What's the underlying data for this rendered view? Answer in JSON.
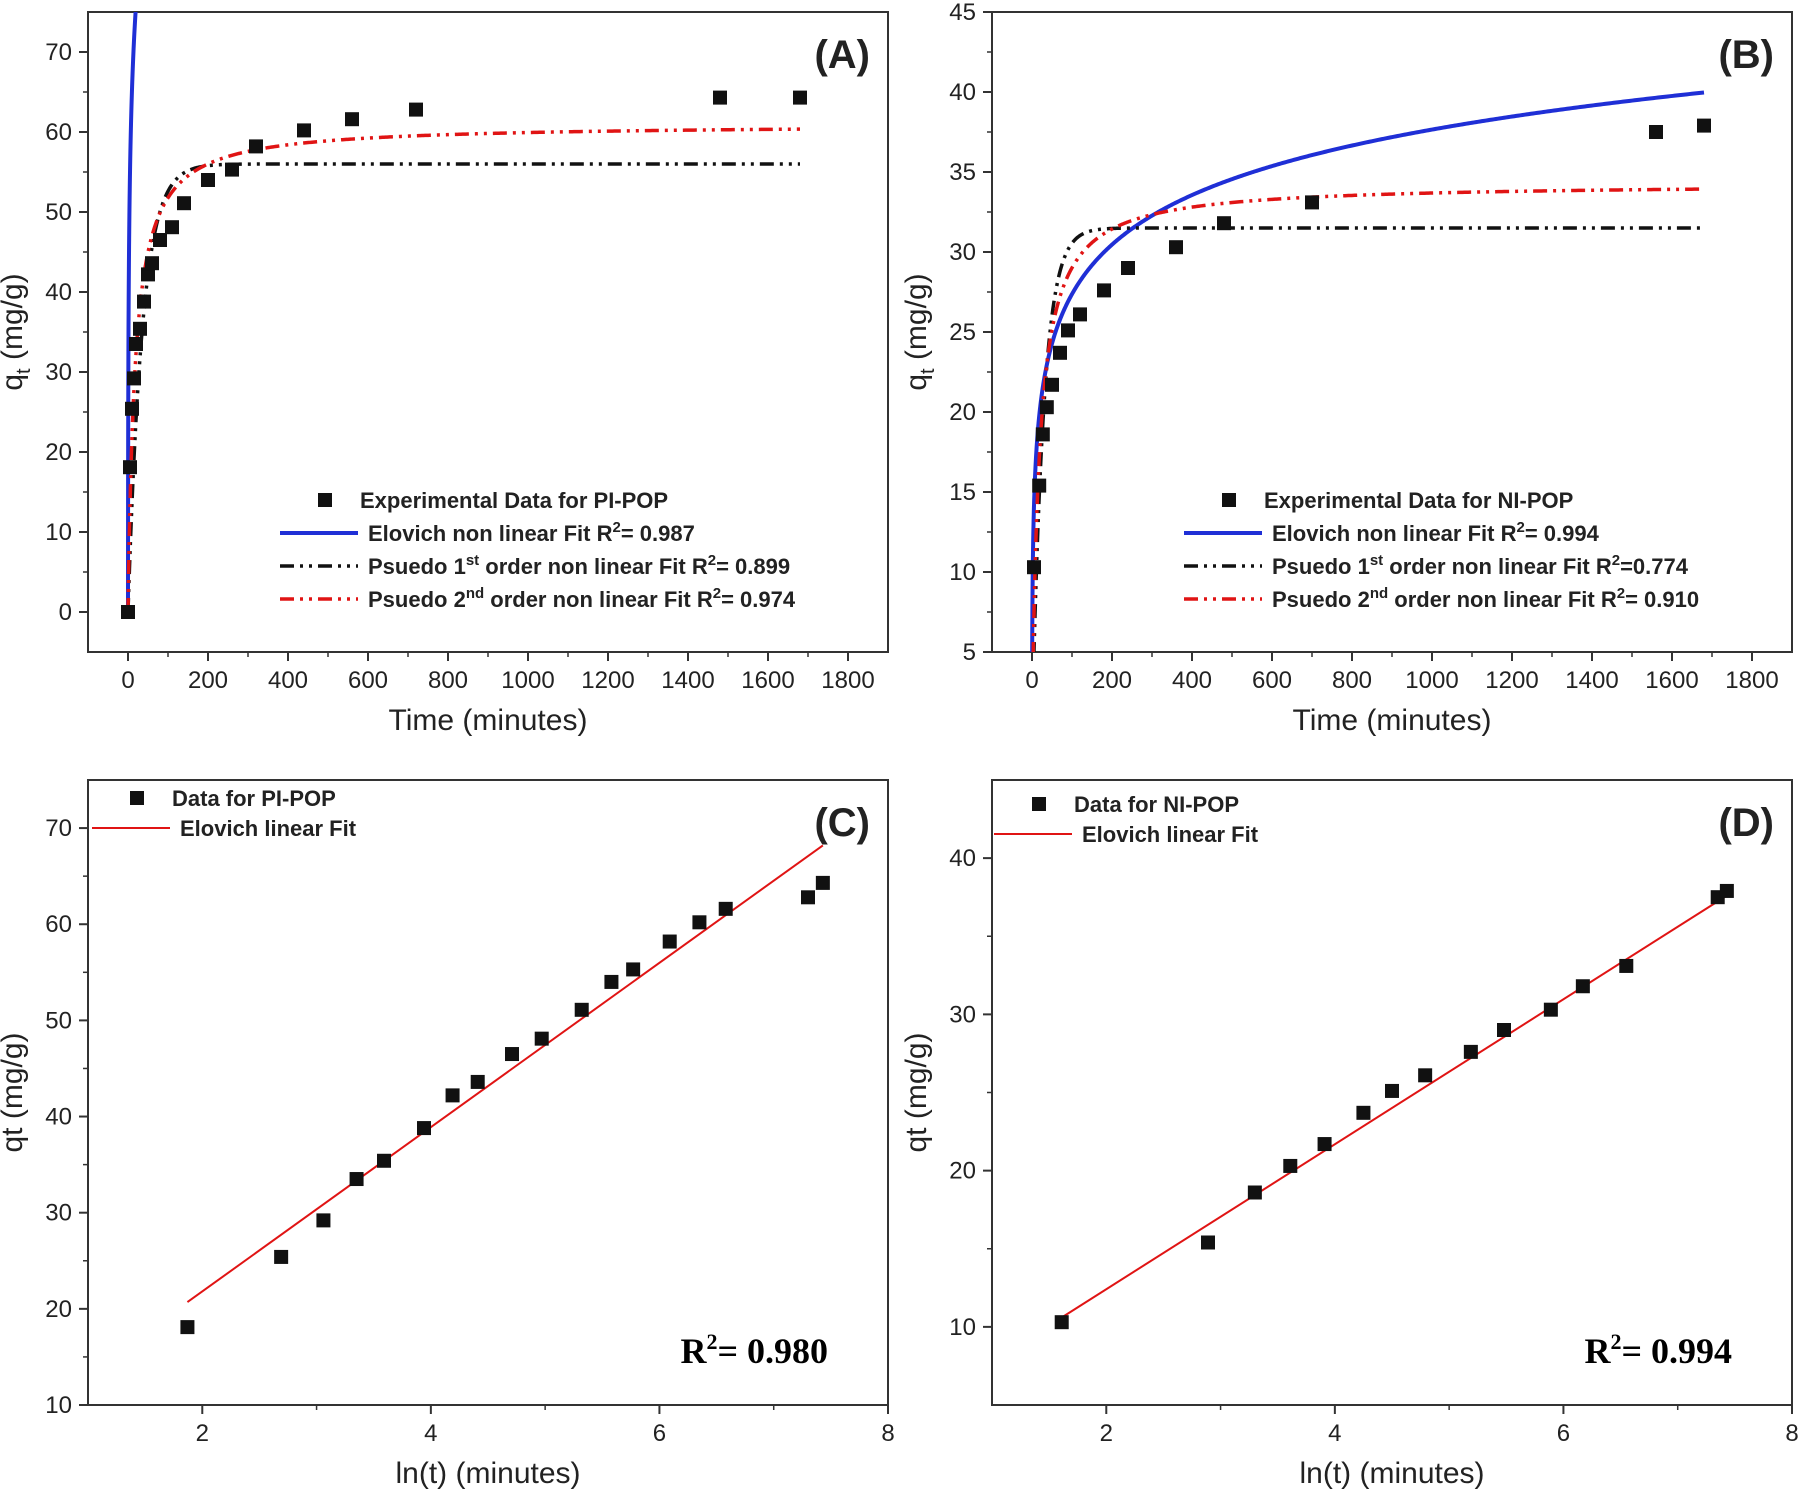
{
  "figure": {
    "colors": {
      "experimental": "#111111",
      "elovich": "#1f2fd6",
      "pfo": "#111111",
      "pso": "#e01414",
      "linear_fit": "#e01414"
    }
  },
  "chart_data": [
    {
      "id": "A",
      "type": "scatter",
      "panel_label": "(A)",
      "xlabel": "Time (minutes)",
      "ylabel_main": "q",
      "ylabel_sub": "t",
      "ylabel_unit": " (mg/g)",
      "xlim": [
        -100,
        1900
      ],
      "ylim": [
        -5,
        75
      ],
      "xticks": [
        0,
        200,
        400,
        600,
        800,
        1000,
        1200,
        1400,
        1600,
        1800
      ],
      "yticks": [
        0,
        10,
        20,
        30,
        40,
        50,
        60,
        70
      ],
      "legend_position": "bottom-right",
      "points": {
        "x": [
          0,
          5,
          10,
          15,
          20,
          30,
          40,
          50,
          60,
          80,
          110,
          140,
          200,
          260,
          320,
          440,
          560,
          720,
          1480,
          1680
        ],
        "y": [
          0,
          18.1,
          25.4,
          29.2,
          33.5,
          35.4,
          38.8,
          42.2,
          43.6,
          46.5,
          48.1,
          51.1,
          54.0,
          55.3,
          58.2,
          60.2,
          61.6,
          62.8,
          64.3,
          64.3
        ]
      },
      "series": [
        {
          "name_parts": [
            "Experimental Data for PI-POP"
          ],
          "kind": "scatter"
        },
        {
          "name_parts": [
            "Elovich non linear Fit R",
            "2",
            "= 0.987"
          ],
          "kind": "elovich",
          "params": {
            "a": 15.3,
            "b": 7.05,
            "c": 1.0
          }
        },
        {
          "name_parts": [
            "Psuedo 1",
            "st",
            " order non linear Fit R",
            "2",
            "= 0.899"
          ],
          "kind": "pfo",
          "params": {
            "qe": 56.0,
            "k1": 0.028
          }
        },
        {
          "name_parts": [
            "Psuedo 2",
            "nd",
            " order non linear Fit R",
            "2",
            "=  0.974"
          ],
          "kind": "pso",
          "params": {
            "qe": 61.0,
            "k2": 0.00092
          }
        }
      ],
      "fit_xmax": 1680
    },
    {
      "id": "B",
      "type": "scatter",
      "panel_label": "(B)",
      "xlabel": "Time (minutes)",
      "ylabel_main": "q",
      "ylabel_sub": "t",
      "ylabel_unit": " (mg/g)",
      "xlim": [
        -100,
        1900
      ],
      "ylim": [
        5,
        45
      ],
      "xticks": [
        0,
        200,
        400,
        600,
        800,
        1000,
        1200,
        1400,
        1600,
        1800
      ],
      "yticks": [
        5,
        10,
        15,
        20,
        25,
        30,
        35,
        40,
        45
      ],
      "legend_position": "bottom-right",
      "points": {
        "x": [
          5,
          18,
          27,
          37,
          50,
          70,
          90,
          120,
          180,
          240,
          360,
          480,
          700,
          1560,
          1680
        ],
        "y": [
          10.3,
          15.4,
          18.6,
          20.3,
          21.7,
          23.7,
          25.1,
          26.1,
          27.6,
          29.0,
          30.3,
          31.8,
          33.1,
          37.5,
          37.9
        ]
      },
      "series": [
        {
          "name_parts": [
            "Experimental Data for NI-POP"
          ],
          "kind": "scatter"
        },
        {
          "name_parts": [
            "Elovich non linear Fit R",
            "2",
            "= 0.994"
          ],
          "kind": "elovich",
          "params": {
            "a": 4.47,
            "b": 4.55,
            "c": 1.0
          }
        },
        {
          "name_parts": [
            "Psuedo 1",
            "st",
            " order non linear Fit R",
            "2",
            "=0.774"
          ],
          "kind": "pfo",
          "params": {
            "qe": 31.5,
            "k1": 0.035
          }
        },
        {
          "name_parts": [
            "Psuedo 2",
            "nd",
            " order non linear Fit R",
            "2",
            "= 0.910"
          ],
          "kind": "pso",
          "params": {
            "qe": 34.3,
            "k2": 0.0016
          }
        }
      ],
      "fit_xmax": 1680
    },
    {
      "id": "C",
      "type": "scatter",
      "panel_label": "(C)",
      "xlabel": "ln(t) (minutes)",
      "ylabel": "qt (mg/g)",
      "xlim": [
        1.0,
        8.0
      ],
      "ylim": [
        10,
        75
      ],
      "xticks": [
        2,
        4,
        6,
        8
      ],
      "yticks": [
        10,
        20,
        30,
        40,
        50,
        60,
        70
      ],
      "legend_position": "top-left",
      "points": {
        "x": [
          1.87,
          2.69,
          3.06,
          3.35,
          3.59,
          3.94,
          4.19,
          4.41,
          4.71,
          4.97,
          5.32,
          5.58,
          5.77,
          6.09,
          6.35,
          6.58,
          7.3,
          7.43
        ],
        "y": [
          18.1,
          25.4,
          29.2,
          33.5,
          35.4,
          38.8,
          42.2,
          43.6,
          46.5,
          48.1,
          51.1,
          54.0,
          55.3,
          58.2,
          60.2,
          61.6,
          62.8,
          64.3
        ]
      },
      "series": [
        {
          "name_parts": [
            "Data for PI-POP"
          ],
          "kind": "scatter"
        },
        {
          "name_parts": [
            "Elovich linear Fit"
          ],
          "kind": "line",
          "x": [
            1.87,
            7.43
          ],
          "y": [
            20.7,
            68.2
          ]
        }
      ],
      "r2_label": "R",
      "r2_sup": "2",
      "r2_value": "= 0.980"
    },
    {
      "id": "D",
      "type": "scatter",
      "panel_label": "(D)",
      "xlabel": "ln(t) (minutes)",
      "ylabel": "qt (mg/g)",
      "xlim": [
        1.0,
        8.0
      ],
      "ylim": [
        5,
        45
      ],
      "xticks": [
        2,
        4,
        6,
        8
      ],
      "yticks": [
        10,
        20,
        30,
        40
      ],
      "legend_position": "top-left",
      "points": {
        "x": [
          1.61,
          2.89,
          3.3,
          3.61,
          3.91,
          4.25,
          4.5,
          4.79,
          5.19,
          5.48,
          5.89,
          6.17,
          6.55,
          7.35,
          7.43
        ],
        "y": [
          10.3,
          15.4,
          18.6,
          20.3,
          21.7,
          23.7,
          25.1,
          26.1,
          27.6,
          29.0,
          30.3,
          31.8,
          33.1,
          37.5,
          37.9
        ]
      },
      "series": [
        {
          "name_parts": [
            "Data for NI-POP"
          ],
          "kind": "scatter"
        },
        {
          "name_parts": [
            "Elovich linear Fit"
          ],
          "kind": "line",
          "x": [
            1.61,
            7.43
          ],
          "y": [
            10.6,
            37.6
          ]
        }
      ],
      "r2_label": "R",
      "r2_sup": "2",
      "r2_value": "= 0.994"
    }
  ]
}
